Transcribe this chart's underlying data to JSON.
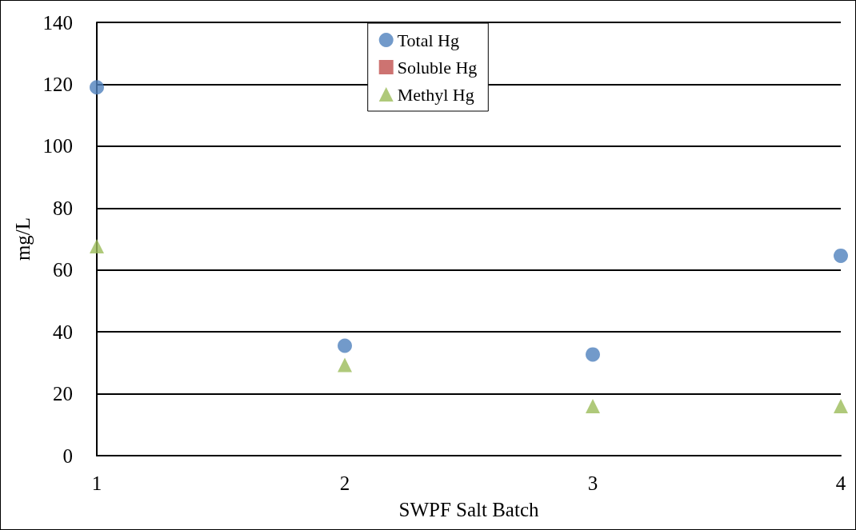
{
  "chart_data": {
    "type": "scatter",
    "xlabel": "SWPF Salt Batch",
    "ylabel": "mg/L",
    "x": [
      1,
      2,
      3,
      4
    ],
    "series": [
      {
        "name": "Total Hg",
        "color": "#4f81bd",
        "marker": "circle",
        "values": [
          119,
          35.5,
          32.7,
          64.6
        ]
      },
      {
        "name": "Soluble Hg",
        "color": "#c0504d",
        "marker": "square",
        "values": [
          null,
          null,
          null,
          null
        ]
      },
      {
        "name": "Methyl Hg",
        "color": "#9bbb59",
        "marker": "triangle",
        "values": [
          67.7,
          29.3,
          16,
          16
        ]
      }
    ],
    "xlim": [
      1,
      4
    ],
    "xticks": [
      1,
      2,
      3,
      4
    ],
    "ylim": [
      0,
      140
    ],
    "yticks": [
      0,
      20,
      40,
      60,
      80,
      100,
      120,
      140
    ],
    "grid": "y",
    "legend": "top"
  }
}
